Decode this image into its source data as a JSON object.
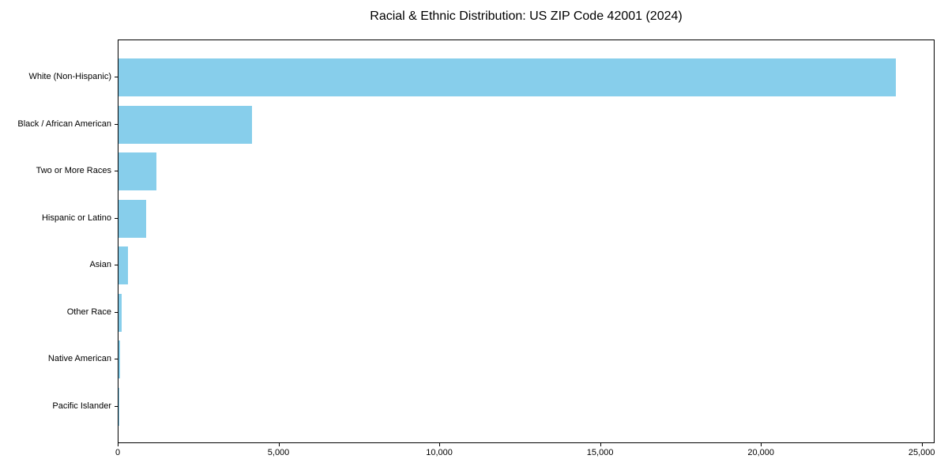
{
  "figure": {
    "title": "Racial & Ethnic Distribution: US ZIP Code 42001 (2024)"
  },
  "chart_data": {
    "type": "bar",
    "orientation": "horizontal",
    "title": "Racial & Ethnic Distribution: US ZIP Code 42001 (2024)",
    "categories": [
      "White (Non-Hispanic)",
      "Black / African American",
      "Two or More Races",
      "Hispanic or Latino",
      "Asian",
      "Other Race",
      "Native American",
      "Pacific Islander"
    ],
    "values": [
      24165,
      4150,
      1170,
      870,
      290,
      105,
      50,
      15
    ],
    "xlabel": "",
    "ylabel": "",
    "xlim": [
      0,
      25400
    ],
    "xticks": [
      0,
      5000,
      10000,
      15000,
      20000,
      25000
    ],
    "xtick_labels": [
      "0",
      "5,000",
      "10,000",
      "15,000",
      "20,000",
      "25,000"
    ],
    "bar_color": "#87CEEB",
    "axis_color": "#000000",
    "background": "#FFFFFF",
    "grid": false,
    "legend": null
  }
}
